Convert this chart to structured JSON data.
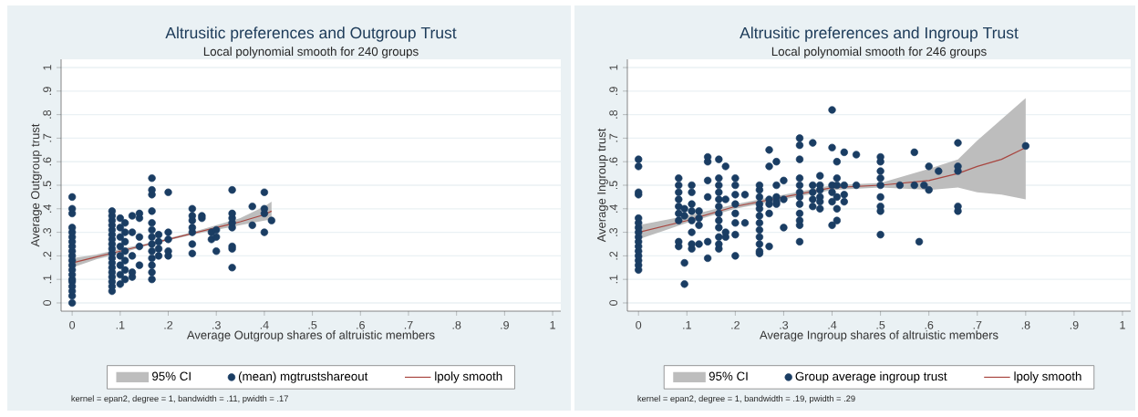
{
  "chart_data": [
    {
      "type": "scatter",
      "title": "Altrusitic preferences and Outgroup Trust",
      "subtitle": "Local polynomial smooth for 240 groups",
      "xlabel": "Average Outgroup shares of altruistic members",
      "ylabel": "Average Outgroup trust",
      "annotations": [
        "kernel = epan2, degree = 1, bandwidth = .11, pwidth = .17",
        "95% CI"
      ],
      "xlim": [
        -0.023,
        1.017
      ],
      "ylim": [
        -0.035,
        1.035
      ],
      "xticks": [
        0,
        {
          "value": 0.1,
          "label": ".1"
        },
        {
          "value": 0.2,
          "label": ".2"
        },
        {
          "value": 0.3,
          "label": ".3"
        },
        {
          "value": 0.4,
          "label": ".4"
        },
        {
          "value": 0.5,
          "label": ".5"
        },
        {
          "value": 0.6,
          "label": ".6"
        },
        {
          "value": 0.7,
          "label": ".7"
        },
        {
          "value": 0.8,
          "label": ".8"
        },
        {
          "value": 0.9,
          "label": ".9"
        },
        1
      ],
      "yticks": [
        0,
        {
          "value": 0.1,
          "label": ".1"
        },
        {
          "value": 0.2,
          "label": ".2"
        },
        {
          "value": 0.3,
          "label": ".3"
        },
        {
          "value": 0.4,
          "label": ".4"
        },
        {
          "value": 0.5,
          "label": ".5"
        },
        {
          "value": 0.6,
          "label": ".6"
        },
        {
          "value": 0.7,
          "label": ".7"
        },
        {
          "value": 0.8,
          "label": ".8"
        },
        {
          "value": 0.9,
          "label": ".9"
        },
        1
      ],
      "grid": "y",
      "legend": "bottom",
      "series": [
        {
          "name": "(mean) mgtrustshareout",
          "color": "#1a3d63",
          "marker": "circle",
          "x": [
            0,
            0,
            0,
            0,
            0,
            0,
            0,
            0,
            0,
            0,
            0,
            0,
            0,
            0,
            0,
            0,
            0,
            0,
            0,
            0,
            0.083,
            0.083,
            0.083,
            0.083,
            0.083,
            0.083,
            0.083,
            0.083,
            0.083,
            0.083,
            0.083,
            0.083,
            0.083,
            0.083,
            0.083,
            0.083,
            0.083,
            0.083,
            0.1,
            0.1,
            0.1,
            0.1,
            0.1,
            0.1,
            0.1,
            0.1,
            0.11,
            0.11,
            0.11,
            0.11,
            0.11,
            0.11,
            0.11,
            0.125,
            0.125,
            0.125,
            0.125,
            0.125,
            0.14,
            0.14,
            0.14,
            0.14,
            0.14,
            0.166,
            0.166,
            0.166,
            0.166,
            0.166,
            0.166,
            0.166,
            0.166,
            0.166,
            0.166,
            0.166,
            0.166,
            0.166,
            0.18,
            0.18,
            0.18,
            0.18,
            0.2,
            0.2,
            0.2,
            0.2,
            0.2,
            0.25,
            0.25,
            0.25,
            0.25,
            0.25,
            0.25,
            0.25,
            0.27,
            0.27,
            0.29,
            0.29,
            0.3,
            0.3,
            0.3,
            0.333,
            0.333,
            0.333,
            0.333,
            0.333,
            0.333,
            0.333,
            0.333,
            0.375,
            0.375,
            0.4,
            0.4,
            0.4,
            0.4,
            0.415
          ],
          "values": [
            0,
            0.03,
            0.05,
            0.07,
            0.09,
            0.1,
            0.12,
            0.14,
            0.16,
            0.18,
            0.2,
            0.22,
            0.24,
            0.26,
            0.28,
            0.3,
            0.32,
            0.38,
            0.4,
            0.45,
            0.05,
            0.07,
            0.09,
            0.11,
            0.13,
            0.15,
            0.17,
            0.19,
            0.21,
            0.23,
            0.25,
            0.27,
            0.29,
            0.31,
            0.33,
            0.35,
            0.37,
            0.39,
            0.08,
            0.12,
            0.16,
            0.2,
            0.24,
            0.28,
            0.32,
            0.36,
            0.1,
            0.14,
            0.18,
            0.22,
            0.26,
            0.3,
            0.34,
            0.11,
            0.13,
            0.2,
            0.3,
            0.37,
            0.16,
            0.24,
            0.28,
            0.36,
            0.38,
            0.1,
            0.13,
            0.16,
            0.19,
            0.22,
            0.25,
            0.28,
            0.31,
            0.34,
            0.39,
            0.46,
            0.48,
            0.53,
            0.2,
            0.23,
            0.26,
            0.29,
            0.2,
            0.22,
            0.27,
            0.3,
            0.47,
            0.21,
            0.25,
            0.3,
            0.32,
            0.35,
            0.37,
            0.4,
            0.36,
            0.37,
            0.27,
            0.3,
            0.22,
            0.28,
            0.31,
            0.15,
            0.23,
            0.24,
            0.32,
            0.34,
            0.36,
            0.38,
            0.48,
            0.33,
            0.41,
            0.3,
            0.38,
            0.4,
            0.47,
            0.35
          ]
        },
        {
          "name": "lpoly smooth",
          "type": "line",
          "color": "#a8453f",
          "marker": "none",
          "x": [
            0,
            0.05,
            0.1,
            0.15,
            0.2,
            0.25,
            0.3,
            0.35,
            0.4,
            0.415
          ],
          "values": [
            0.17,
            0.195,
            0.22,
            0.245,
            0.27,
            0.295,
            0.32,
            0.345,
            0.375,
            0.39
          ],
          "lower": [
            0.15,
            0.185,
            0.21,
            0.24,
            0.265,
            0.29,
            0.31,
            0.33,
            0.35,
            0.355
          ],
          "upper": [
            0.19,
            0.205,
            0.23,
            0.25,
            0.275,
            0.3,
            0.33,
            0.36,
            0.41,
            0.43
          ]
        }
      ]
    },
    {
      "type": "scatter",
      "title": "Altrusitic preferences and Ingroup Trust",
      "subtitle": "Local polynomial smooth for 246 groups",
      "xlabel": "Average Ingroup shares of altruistic members",
      "ylabel": "Average Ingroup trust",
      "annotations": [
        "kernel = epan2, degree = 1, bandwidth = .19, pwidth = .29",
        "95% CI"
      ],
      "xlim": [
        -0.023,
        1.017
      ],
      "ylim": [
        -0.035,
        1.035
      ],
      "xticks": [
        0,
        {
          "value": 0.1,
          "label": ".1"
        },
        {
          "value": 0.2,
          "label": ".2"
        },
        {
          "value": 0.3,
          "label": ".3"
        },
        {
          "value": 0.4,
          "label": ".4"
        },
        {
          "value": 0.5,
          "label": ".5"
        },
        {
          "value": 0.6,
          "label": ".6"
        },
        {
          "value": 0.7,
          "label": ".7"
        },
        {
          "value": 0.8,
          "label": ".8"
        },
        {
          "value": 0.9,
          "label": ".9"
        },
        1
      ],
      "yticks": [
        0,
        {
          "value": 0.1,
          "label": ".1"
        },
        {
          "value": 0.2,
          "label": ".2"
        },
        {
          "value": 0.3,
          "label": ".3"
        },
        {
          "value": 0.4,
          "label": ".4"
        },
        {
          "value": 0.5,
          "label": ".5"
        },
        {
          "value": 0.6,
          "label": ".6"
        },
        {
          "value": 0.7,
          "label": ".7"
        },
        {
          "value": 0.8,
          "label": ".8"
        },
        {
          "value": 0.9,
          "label": ".9"
        },
        1
      ],
      "grid": "y",
      "legend": "bottom",
      "series": [
        {
          "name": "Group average ingroup trust",
          "color": "#1a3d63",
          "marker": "circle",
          "x": [
            0,
            0,
            0,
            0,
            0,
            0,
            0,
            0,
            0,
            0,
            0,
            0,
            0,
            0,
            0,
            0,
            0.083,
            0.083,
            0.083,
            0.083,
            0.083,
            0.083,
            0.083,
            0.083,
            0.083,
            0.095,
            0.095,
            0.095,
            0.095,
            0.11,
            0.11,
            0.11,
            0.11,
            0.11,
            0.11,
            0.11,
            0.11,
            0.125,
            0.125,
            0.125,
            0.125,
            0.143,
            0.143,
            0.143,
            0.143,
            0.143,
            0.143,
            0.166,
            0.166,
            0.166,
            0.166,
            0.166,
            0.166,
            0.166,
            0.166,
            0.166,
            0.166,
            0.166,
            0.166,
            0.18,
            0.18,
            0.18,
            0.18,
            0.2,
            0.2,
            0.2,
            0.2,
            0.2,
            0.2,
            0.2,
            0.2,
            0.22,
            0.22,
            0.25,
            0.25,
            0.25,
            0.25,
            0.25,
            0.25,
            0.25,
            0.25,
            0.25,
            0.25,
            0.25,
            0.25,
            0.27,
            0.27,
            0.27,
            0.27,
            0.27,
            0.27,
            0.285,
            0.285,
            0.285,
            0.285,
            0.285,
            0.3,
            0.3,
            0.3,
            0.333,
            0.333,
            0.333,
            0.333,
            0.333,
            0.333,
            0.333,
            0.333,
            0.333,
            0.333,
            0.333,
            0.333,
            0.36,
            0.36,
            0.36,
            0.36,
            0.36,
            0.375,
            0.375,
            0.375,
            0.375,
            0.375,
            0.375,
            0.4,
            0.4,
            0.4,
            0.4,
            0.4,
            0.4,
            0.41,
            0.41,
            0.41,
            0.41,
            0.41,
            0.41,
            0.425,
            0.425,
            0.425,
            0.425,
            0.45,
            0.45,
            0.5,
            0.5,
            0.5,
            0.5,
            0.5,
            0.5,
            0.5,
            0.5,
            0.5,
            0.54,
            0.57,
            0.57,
            0.58,
            0.59,
            0.6,
            0.6,
            0.62,
            0.66,
            0.66,
            0.66,
            0.66,
            0.66,
            0.8
          ],
          "values": [
            0.14,
            0.16,
            0.18,
            0.2,
            0.22,
            0.24,
            0.26,
            0.28,
            0.3,
            0.32,
            0.34,
            0.36,
            0.46,
            0.47,
            0.58,
            0.61,
            0.24,
            0.26,
            0.35,
            0.38,
            0.41,
            0.44,
            0.47,
            0.5,
            0.53,
            0.08,
            0.17,
            0.37,
            0.4,
            0.23,
            0.25,
            0.3,
            0.35,
            0.39,
            0.42,
            0.47,
            0.5,
            0.25,
            0.33,
            0.36,
            0.39,
            0.19,
            0.26,
            0.45,
            0.52,
            0.6,
            0.62,
            0.23,
            0.25,
            0.28,
            0.32,
            0.35,
            0.38,
            0.41,
            0.44,
            0.47,
            0.5,
            0.53,
            0.61,
            0.28,
            0.3,
            0.44,
            0.58,
            0.2,
            0.29,
            0.34,
            0.38,
            0.42,
            0.46,
            0.5,
            0.53,
            0.34,
            0.46,
            0.21,
            0.22,
            0.25,
            0.28,
            0.31,
            0.34,
            0.37,
            0.4,
            0.42,
            0.45,
            0.48,
            0.5,
            0.24,
            0.38,
            0.42,
            0.44,
            0.58,
            0.65,
            0.42,
            0.43,
            0.45,
            0.5,
            0.6,
            0.32,
            0.44,
            0.52,
            0.26,
            0.33,
            0.35,
            0.38,
            0.42,
            0.45,
            0.47,
            0.5,
            0.53,
            0.61,
            0.67,
            0.7,
            0.41,
            0.44,
            0.47,
            0.5,
            0.68,
            0.4,
            0.43,
            0.45,
            0.48,
            0.5,
            0.54,
            0.33,
            0.43,
            0.47,
            0.5,
            0.66,
            0.82,
            0.35,
            0.4,
            0.45,
            0.5,
            0.53,
            0.6,
            0.43,
            0.46,
            0.5,
            0.64,
            0.5,
            0.63,
            0.29,
            0.39,
            0.41,
            0.45,
            0.5,
            0.53,
            0.56,
            0.6,
            0.62,
            0.5,
            0.5,
            0.64,
            0.26,
            0.5,
            0.48,
            0.58,
            0.56,
            0.39,
            0.41,
            0.56,
            0.58,
            0.68,
            0.667
          ]
        },
        {
          "name": "lpoly smooth",
          "type": "line",
          "color": "#a8453f",
          "marker": "none",
          "x": [
            0,
            0.1,
            0.2,
            0.3,
            0.4,
            0.5,
            0.6,
            0.66,
            0.7,
            0.75,
            0.8
          ],
          "values": [
            0.3,
            0.35,
            0.41,
            0.45,
            0.49,
            0.5,
            0.52,
            0.55,
            0.58,
            0.61,
            0.66
          ],
          "lower": [
            0.27,
            0.34,
            0.4,
            0.44,
            0.48,
            0.49,
            0.48,
            0.49,
            0.47,
            0.46,
            0.44
          ],
          "upper": [
            0.33,
            0.37,
            0.42,
            0.46,
            0.5,
            0.51,
            0.57,
            0.61,
            0.69,
            0.78,
            0.87
          ]
        }
      ]
    }
  ]
}
